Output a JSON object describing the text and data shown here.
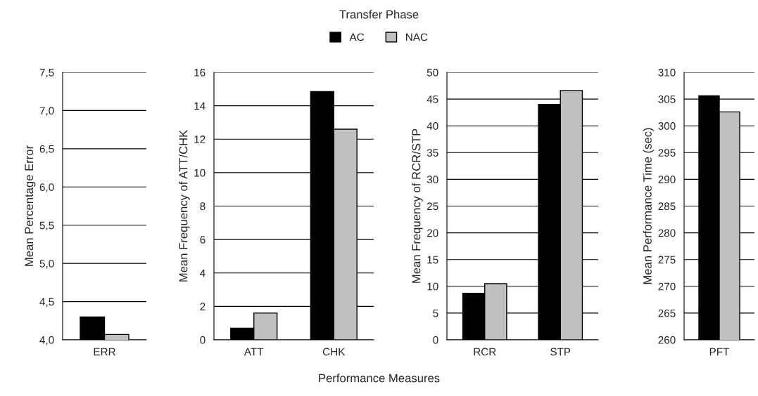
{
  "chart_data": [
    {
      "type": "other",
      "annotations": [
        "Transfer Phase",
        "Performance Measures"
      ]
    },
    {
      "type": "bar",
      "ylabel": "Mean Percentage Error",
      "categories": [
        "ERR"
      ],
      "legend": "top",
      "grid": "y",
      "ylim": [
        4.0,
        7.5
      ],
      "yticks": [
        {
          "value": 4.0,
          "label": "4,0"
        },
        {
          "value": 4.5,
          "label": "4,5"
        },
        {
          "value": 5.0,
          "label": "5,0"
        },
        {
          "value": 5.5,
          "label": "5,5"
        },
        {
          "value": 6.0,
          "label": "6,0"
        },
        {
          "value": 6.5,
          "label": "6,5"
        },
        {
          "value": 7.0,
          "label": "7,0"
        },
        {
          "value": 7.5,
          "label": "7,5"
        }
      ],
      "series": [
        {
          "name": "AC",
          "color": "#000000",
          "values": [
            4.3
          ]
        },
        {
          "name": "NAC",
          "color": "#c0c0c0",
          "values": [
            4.07
          ]
        }
      ]
    },
    {
      "type": "bar",
      "ylabel": "Mean Frequency of ATT/CHK",
      "categories": [
        "ATT",
        "CHK"
      ],
      "grid": "y",
      "ylim": [
        0,
        16
      ],
      "yticks": [
        0,
        2,
        4,
        6,
        8,
        10,
        12,
        14,
        16
      ],
      "series": [
        {
          "color": "#000000",
          "values": [
            0.7,
            14.85
          ]
        },
        {
          "color": "#c0c0c0",
          "values": [
            1.6,
            12.6
          ]
        }
      ]
    },
    {
      "type": "bar",
      "ylabel": "Mean Frequency of RCR/STP",
      "categories": [
        "RCR",
        "STP"
      ],
      "grid": "y",
      "ylim": [
        0,
        50
      ],
      "yticks": [
        0,
        5,
        10,
        15,
        20,
        25,
        30,
        35,
        40,
        45,
        50
      ],
      "series": [
        {
          "color": "#000000",
          "values": [
            8.7,
            44
          ]
        },
        {
          "color": "#c0c0c0",
          "values": [
            10.5,
            46.6
          ]
        }
      ]
    },
    {
      "type": "bar",
      "ylabel": "Mean Performance Time (sec)",
      "categories": [
        "PFT"
      ],
      "grid": "y",
      "ylim": [
        260,
        310
      ],
      "yticks": [
        260,
        265,
        270,
        275,
        280,
        285,
        290,
        295,
        300,
        305,
        310
      ],
      "series": [
        {
          "color": "#000000",
          "values": [
            305.6
          ]
        },
        {
          "color": "#c0c0c0",
          "values": [
            302.6
          ]
        }
      ]
    }
  ]
}
